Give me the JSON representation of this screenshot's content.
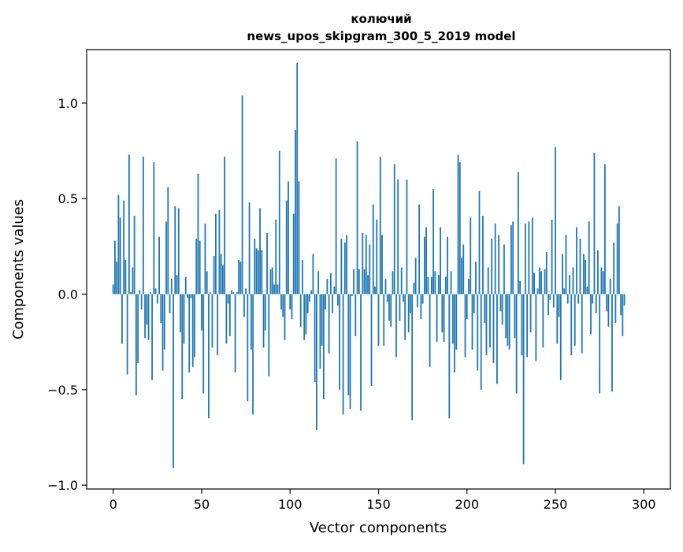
{
  "chart_data": {
    "type": "bar",
    "title_line1": "колючий",
    "title_line2": "news_upos_skipgram_300_5_2019 model",
    "xlabel": "Vector components",
    "ylabel": "Components values",
    "xlim": [
      -15,
      315
    ],
    "ylim": [
      -1.02,
      1.28
    ],
    "xticks": [
      0,
      50,
      100,
      150,
      200,
      250,
      300
    ],
    "xtick_labels": [
      "0",
      "50",
      "100",
      "150",
      "200",
      "250",
      "300"
    ],
    "yticks": [
      -1.0,
      -0.5,
      0.0,
      0.5,
      1.0
    ],
    "ytick_labels": [
      "−1.0",
      "−0.5",
      "0.0",
      "0.5",
      "1.0"
    ],
    "bar_color": "#1f77b4",
    "grid": false,
    "values": [
      0.05,
      0.28,
      0.17,
      0.52,
      0.4,
      -0.26,
      0.49,
      0.18,
      -0.42,
      0.73,
      0.01,
      0.14,
      0.41,
      -0.53,
      -0.36,
      0.02,
      -0.08,
      0.72,
      -0.23,
      -0.16,
      -0.24,
      0.01,
      -0.45,
      0.69,
      0.03,
      -0.05,
      0.3,
      -0.15,
      -0.4,
      -0.29,
      0.38,
      0.56,
      -0.1,
      0.08,
      -0.91,
      0.46,
      0.1,
      0.45,
      -0.2,
      -0.55,
      -0.26,
      0.09,
      -0.02,
      -0.41,
      -0.02,
      -0.38,
      -0.33,
      0.29,
      0.63,
      0.28,
      -0.19,
      -0.52,
      0.37,
      0.12,
      -0.65,
      0.01,
      -0.28,
      0.2,
      0.42,
      -0.32,
      0.44,
      0.21,
      0.15,
      0.72,
      -0.26,
      -0.05,
      -0.22,
      0.02,
      0.01,
      -0.41,
      0.01,
      0.18,
      0.17,
      1.04,
      -0.12,
      0.03,
      -0.56,
      0.48,
      -0.29,
      -0.63,
      0.29,
      0.24,
      0.23,
      0.45,
      0.23,
      -0.28,
      -0.19,
      0.32,
      -0.43,
      0.13,
      0.14,
      0.05,
      0.39,
      0.05,
      0.75,
      -0.08,
      -0.12,
      -0.24,
      0.49,
      0.59,
      -0.08,
      -0.13,
      0.42,
      0.86,
      1.21,
      0.59,
      -0.17,
      0.18,
      -0.24,
      -0.21,
      -0.1,
      -0.04,
      0.02,
      0.21,
      -0.46,
      -0.71,
      0.12,
      -0.39,
      -0.27,
      -0.55,
      -0.08,
      0.08,
      -0.31,
      0.11,
      -0.1,
      0.04,
      0.71,
      -0.06,
      -0.5,
      0.29,
      -0.63,
      0.27,
      0.31,
      -0.53,
      -0.6,
      -0.01,
      0.13,
      -0.22,
      0.8,
      0.13,
      -0.61,
      0.32,
      0.13,
      0.31,
      0.1,
      0.26,
      -0.48,
      0.47,
      0.04,
      0.39,
      -0.27,
      0.72,
      0.31,
      -0.27,
      0.08,
      -0.04,
      -0.14,
      -0.17,
      0.12,
      0.68,
      -0.33,
      0.6,
      -0.14,
      0.14,
      -0.04,
      -0.24,
      0.6,
      -0.2,
      -0.1,
      -0.66,
      0.06,
      0.19,
      -0.07,
      0.47,
      -0.13,
      -0.05,
      0.3,
      0.35,
      0.09,
      -0.38,
      0.09,
      0.55,
      0.12,
      -0.25,
      0.1,
      0.35,
      -0.2,
      -0.25,
      0.09,
      0.3,
      -0.65,
      0.12,
      -0.26,
      -0.41,
      -0.29,
      0.73,
      0.69,
      0.19,
      0.26,
      -0.33,
      -0.13,
      0.08,
      0.4,
      -0.29,
      -0.1,
      0.17,
      -0.4,
      0.54,
      -0.5,
      0.41,
      -0.15,
      -0.32,
      0.14,
      -0.28,
      0.29,
      -0.36,
      0.37,
      -0.47,
      0.31,
      -0.09,
      -0.16,
      0.26,
      -0.23,
      -0.27,
      -0.29,
      0.36,
      0.38,
      -0.23,
      -0.52,
      0.64,
      0.07,
      -0.32,
      -0.89,
      0.37,
      -0.33,
      0.38,
      -0.2,
      0.4,
      0.11,
      -0.35,
      0.03,
      0.14,
      0.12,
      -0.28,
      0.13,
      0.22,
      -0.11,
      -0.03,
      0.39,
      -0.07,
      0.77,
      -0.26,
      -0.12,
      -0.45,
      0.21,
      0.03,
      0.31,
      -0.05,
      0.1,
      -0.32,
      0.14,
      -0.27,
      0.35,
      -0.05,
      0.29,
      -0.31,
      0.21,
      0.18,
      0.04,
      0.38,
      -0.21,
      -0.05,
      0.74,
      -0.1,
      0.23,
      -0.52,
      0.14,
      0.12,
      0.68,
      -0.09,
      -0.17,
      0.08,
      -0.51,
      0.27,
      -0.15,
      0.37,
      0.46,
      -0.11,
      -0.22,
      -0.06
    ]
  }
}
